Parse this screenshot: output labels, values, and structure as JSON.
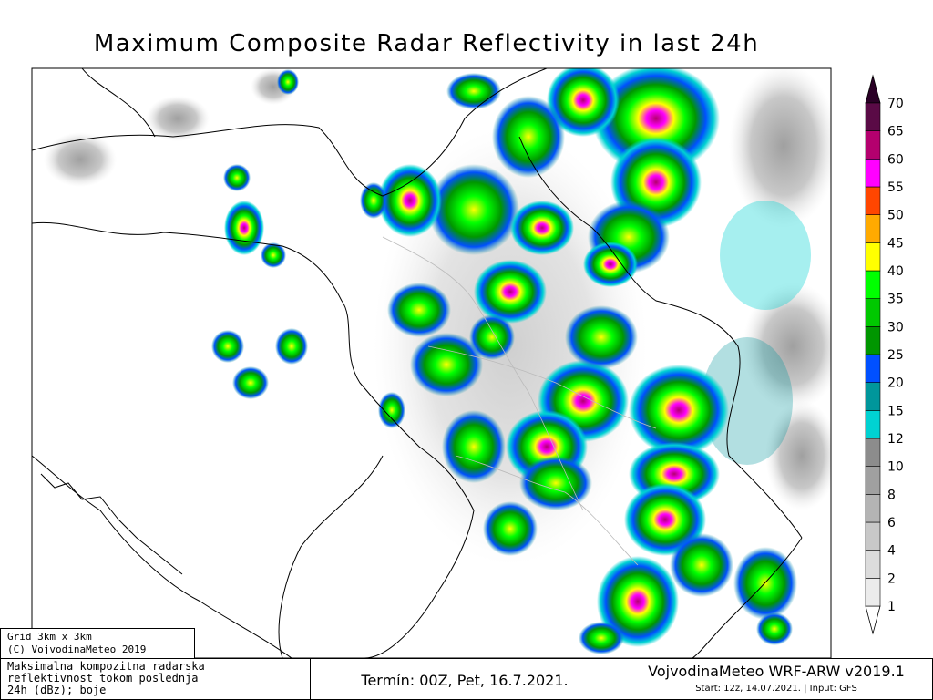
{
  "title": "Maximum Composite Radar Reflectivity in last 24h",
  "colorbar": {
    "levels": [
      1,
      2,
      4,
      6,
      8,
      10,
      12,
      15,
      20,
      25,
      30,
      35,
      40,
      45,
      50,
      55,
      60,
      65,
      70
    ],
    "colors": [
      "#ececec",
      "#dcdcdc",
      "#c8c8c8",
      "#b4b4b4",
      "#a0a0a0",
      "#8c8c8c",
      "#00d2d2",
      "#00969b",
      "#0050ff",
      "#009600",
      "#00c800",
      "#00ff00",
      "#ffff00",
      "#ffaa00",
      "#ff4600",
      "#ff00ff",
      "#b4006e",
      "#5a0a46"
    ],
    "under_color": "#ffffff",
    "over_color": "#2a0026"
  },
  "grid_box": {
    "lines": [
      "Grid 3km x 3km",
      "(C) VojvodinaMeteo 2019"
    ]
  },
  "description_box": {
    "lines": [
      "Maksimalna kompozitna radarska",
      "reflektivnost tokom poslednja",
      "24h (dBz); boje"
    ]
  },
  "time_box": {
    "text": "Termín: 00Z, Pet, 16.7.2021."
  },
  "model_box": {
    "name": "VojvodinaMeteo WRF-ARW v2019.1",
    "info": "Start: 12z, 14.07.2021. | Input: GFS"
  }
}
